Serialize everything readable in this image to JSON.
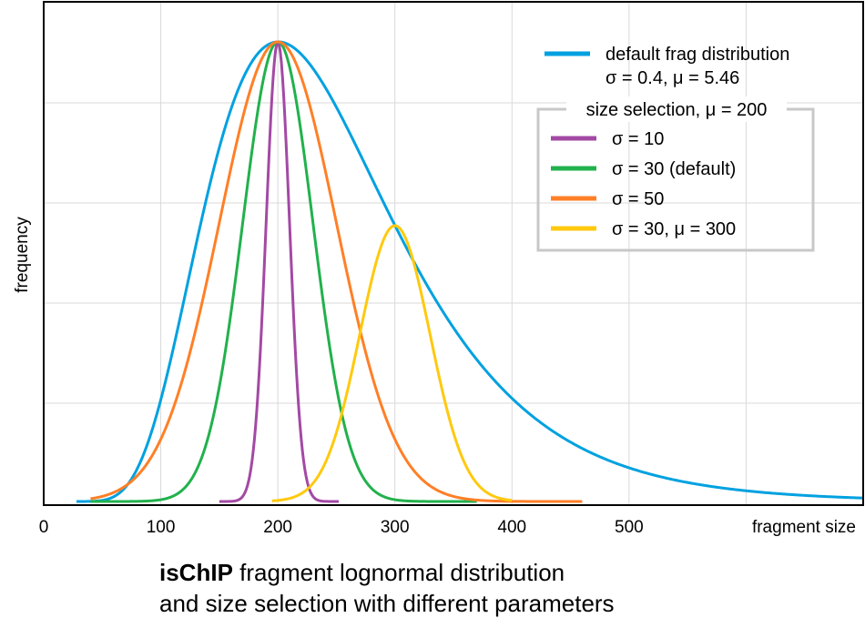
{
  "chart_data": {
    "type": "line",
    "title_bold": "isChIP",
    "title_line1": "fragment lognormal distribution",
    "title_line2": "and size selection with different parameters",
    "xlabel": "fragment size",
    "ylabel": "frequency",
    "xlim": [
      0,
      700
    ],
    "ylim": [
      0,
      1
    ],
    "xticks": [
      0,
      100,
      200,
      300,
      400,
      500
    ],
    "grid": true,
    "legend_position": "top-right",
    "legend": {
      "main": {
        "line1": "default frag distribution",
        "line2": "σ = 0.4, μ = 5.46",
        "color": "#00a1e0"
      },
      "group_title": "size selection, μ = 200",
      "items": [
        {
          "label": "σ = 10",
          "color": "#a349a4"
        },
        {
          "label": "σ = 30 (default)",
          "color": "#22b14c"
        },
        {
          "label": "σ = 50",
          "color": "#ff7f27"
        },
        {
          "label": "σ = 30, μ = 300",
          "color": "#ffc90e"
        }
      ]
    },
    "series": [
      {
        "name": "default frag distribution",
        "color": "#00a1e0",
        "kind": "lognormal",
        "sigma": 0.4,
        "mu": 5.46,
        "x_range": [
          28,
          700
        ],
        "peak": 1.0
      },
      {
        "name": "σ = 10",
        "color": "#a349a4",
        "kind": "normal",
        "sigma": 10,
        "mu": 200,
        "x_range": [
          150,
          252
        ],
        "peak": 1.0
      },
      {
        "name": "σ = 30 (default)",
        "color": "#22b14c",
        "kind": "normal",
        "sigma": 30,
        "mu": 200,
        "x_range": [
          40,
          370
        ],
        "peak": 1.0
      },
      {
        "name": "σ = 50",
        "color": "#ff7f27",
        "kind": "normal",
        "sigma": 50,
        "mu": 200,
        "x_range": [
          40,
          460
        ],
        "peak": 1.0
      },
      {
        "name": "σ = 30, μ = 300",
        "color": "#ffc90e",
        "kind": "normal",
        "sigma": 30,
        "mu": 300,
        "x_range": [
          195,
          400
        ],
        "peak": 0.6
      }
    ]
  }
}
